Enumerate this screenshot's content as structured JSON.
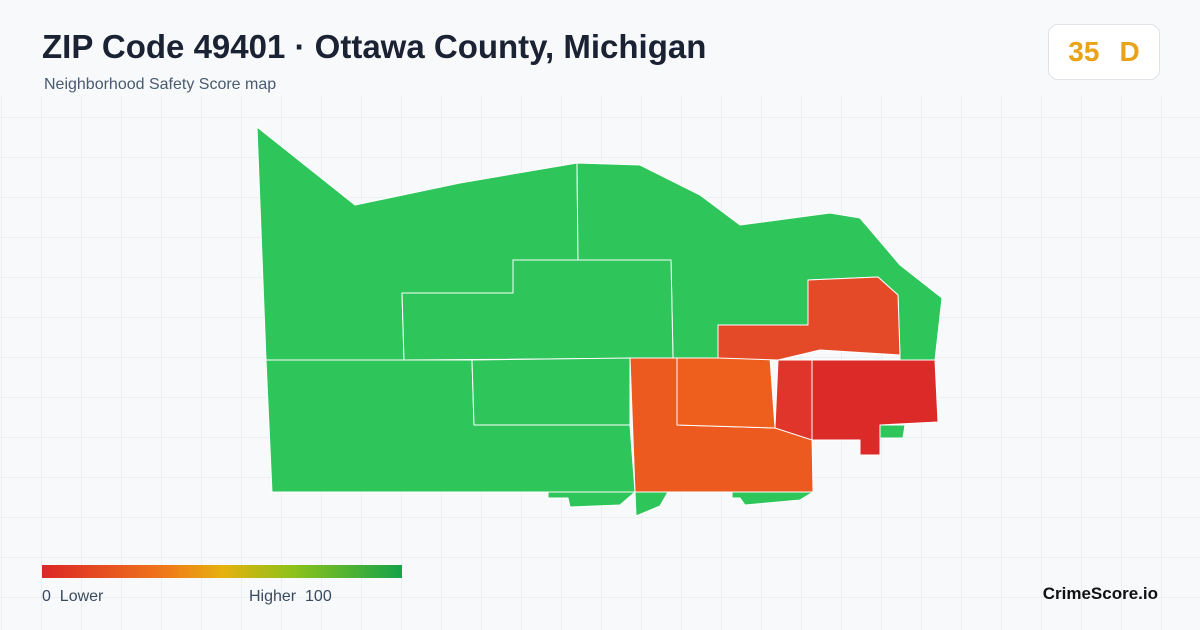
{
  "header": {
    "title": "ZIP Code 49401 · Ottawa County, Michigan",
    "subtitle": "Neighborhood Safety Score map"
  },
  "score": {
    "value": 35,
    "grade": "D"
  },
  "legend": {
    "min": 0,
    "min_label": "Lower",
    "max_label": "Higher",
    "max": 100
  },
  "brand": "CrimeScore.io"
}
